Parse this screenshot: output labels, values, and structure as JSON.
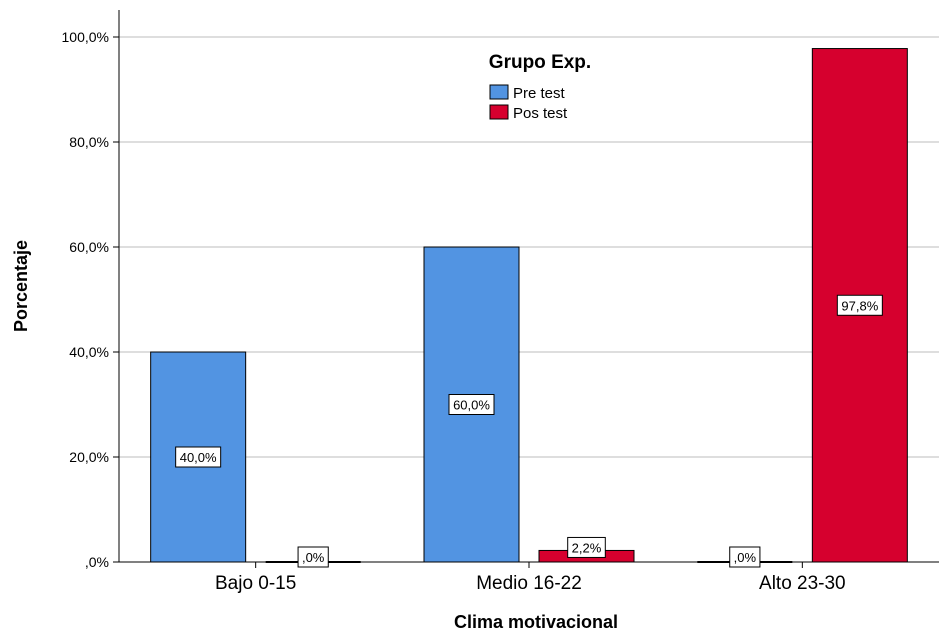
{
  "chart_data": {
    "type": "bar",
    "categories": [
      "Bajo 0-15",
      "Medio 16-22",
      "Alto 23-30"
    ],
    "series": [
      {
        "name": "Pre test",
        "values": [
          40.0,
          60.0,
          0.0
        ],
        "labels": [
          "40,0%",
          "60,0%",
          ",0%"
        ],
        "color": "#5294E2"
      },
      {
        "name": "Pos test",
        "values": [
          0.0,
          2.2,
          97.8
        ],
        "labels": [
          ",0%",
          "2,2%",
          "97,8%"
        ],
        "color": "#D6002E"
      }
    ],
    "title": "",
    "legend_title": "Grupo Exp.",
    "xlabel": "Clima motivacional",
    "ylabel": "Porcentaje",
    "ylim": [
      0,
      100
    ],
    "yticks": [
      0,
      20,
      40,
      60,
      80,
      100
    ],
    "ytick_labels": [
      ",0%",
      "20,0%",
      "40,0%",
      "60,0%",
      "80,0%",
      "100,0%"
    ],
    "grid": true,
    "legend_position": "top-center"
  }
}
